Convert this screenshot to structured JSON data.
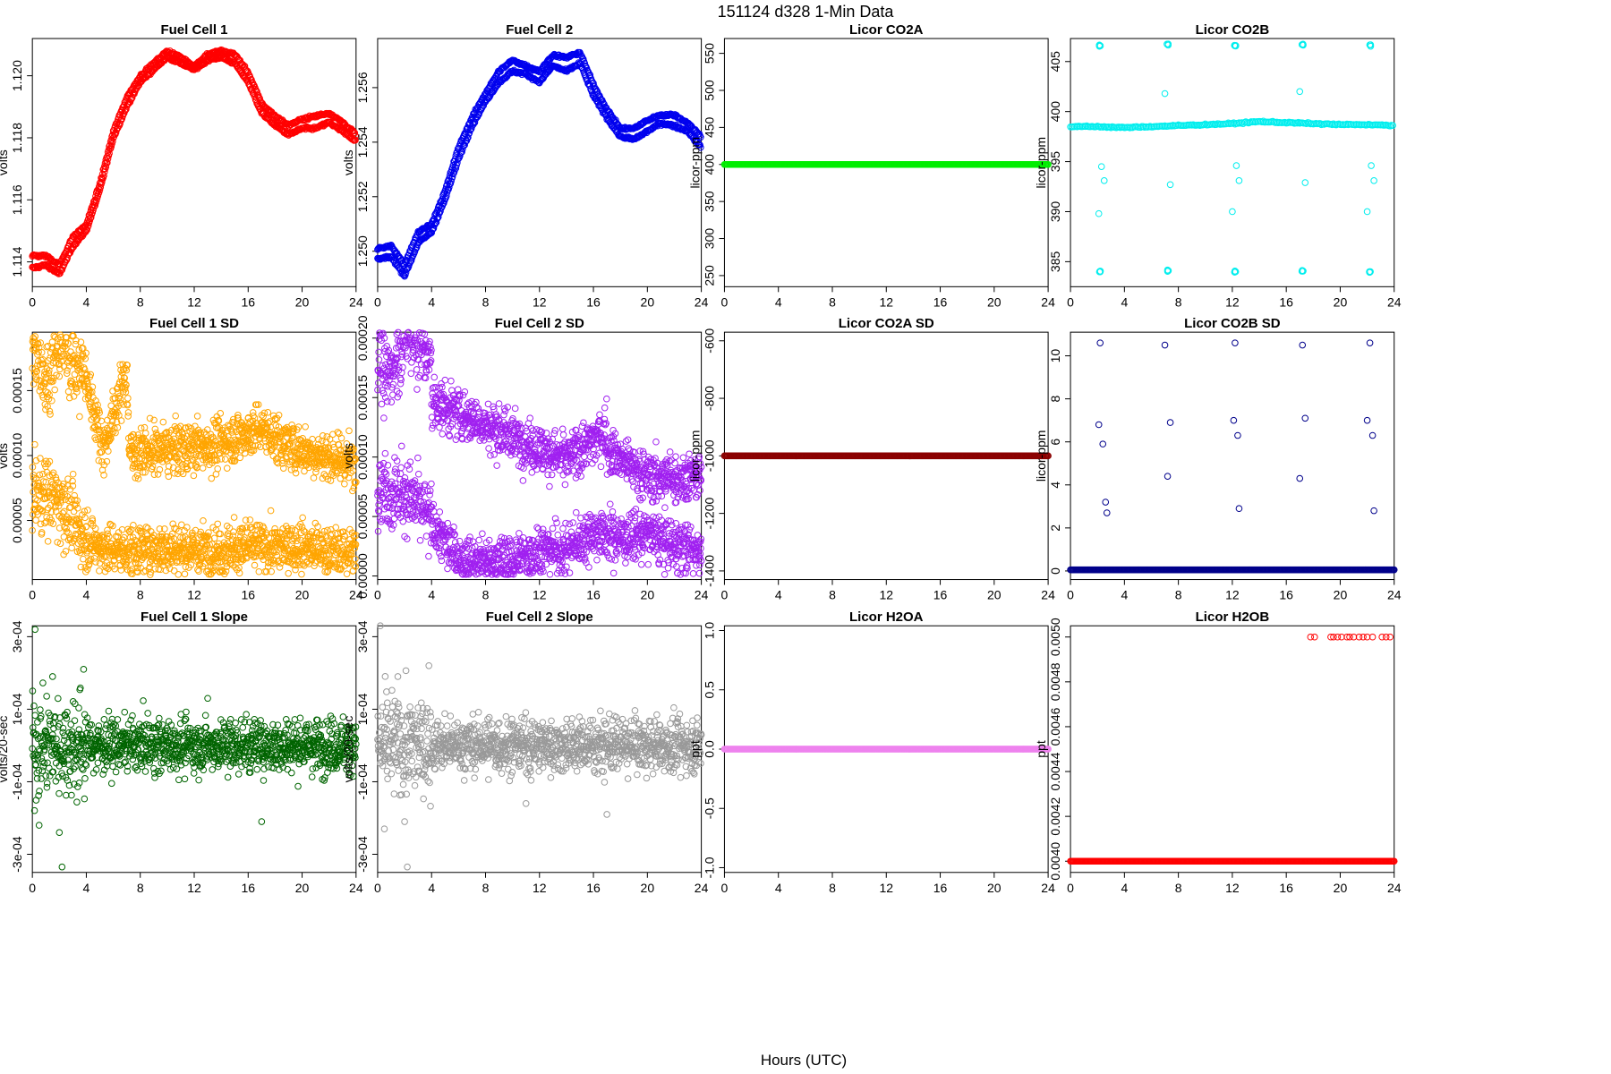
{
  "figure": {
    "title": "151124    d328    1-Min Data",
    "xlabel": "Hours (UTC)"
  },
  "chart_data": [
    {
      "type": "scatter",
      "title": "Fuel Cell 1",
      "ylabel": "volts",
      "color": "#ff0000",
      "xlim": [
        0,
        24
      ],
      "ylim": [
        1.1132,
        1.1212
      ],
      "xticks": [
        0,
        4,
        8,
        12,
        16,
        20,
        24
      ],
      "xtick_labels": [
        "0",
        "4",
        "8",
        "12",
        "16",
        "20",
        "24"
      ],
      "yticks": [
        1.114,
        1.116,
        1.118,
        1.12
      ],
      "ytick_labels": [
        "1.114",
        "1.116",
        "1.118",
        "1.120"
      ],
      "series": [
        {
          "x": [
            0,
            1,
            2,
            3,
            4,
            5,
            6,
            7,
            8,
            9,
            10,
            11,
            12,
            13,
            14,
            15,
            16,
            17,
            18,
            19,
            20,
            21,
            22,
            23,
            24
          ],
          "y": [
            1.1138,
            1.1139,
            1.1136,
            1.1145,
            1.115,
            1.1163,
            1.118,
            1.119,
            1.1198,
            1.1202,
            1.1206,
            1.1204,
            1.1202,
            1.1205,
            1.1206,
            1.1204,
            1.1198,
            1.1188,
            1.1184,
            1.1181,
            1.1183,
            1.1183,
            1.1185,
            1.1182,
            1.1179
          ]
        },
        {
          "x": [
            0,
            1,
            2,
            3,
            4,
            5,
            6,
            7,
            8,
            9,
            10,
            11,
            12,
            13,
            14,
            15,
            16,
            17,
            18,
            19,
            20,
            21,
            22,
            23,
            24
          ],
          "y": [
            1.1142,
            1.1142,
            1.1139,
            1.1148,
            1.1152,
            1.1165,
            1.1182,
            1.1193,
            1.12,
            1.1204,
            1.1208,
            1.1206,
            1.1203,
            1.1207,
            1.1208,
            1.1207,
            1.1201,
            1.1191,
            1.1187,
            1.1184,
            1.1186,
            1.1187,
            1.1188,
            1.1185,
            1.1181
          ]
        }
      ]
    },
    {
      "type": "scatter",
      "title": "Fuel Cell 2",
      "ylabel": "volts",
      "color": "#0000ee",
      "xlim": [
        0,
        24
      ],
      "ylim": [
        1.2487,
        1.2578
      ],
      "xticks": [
        0,
        4,
        8,
        12,
        16,
        20,
        24
      ],
      "xtick_labels": [
        "0",
        "4",
        "8",
        "12",
        "16",
        "20",
        "24"
      ],
      "yticks": [
        1.25,
        1.252,
        1.254,
        1.256
      ],
      "ytick_labels": [
        "1.250",
        "1.252",
        "1.254",
        "1.256"
      ],
      "series": [
        {
          "x": [
            0,
            1,
            2,
            3,
            4,
            5,
            6,
            7,
            8,
            9,
            10,
            11,
            12,
            13,
            14,
            15,
            16,
            17,
            18,
            19,
            20,
            21,
            22,
            23,
            24
          ],
          "y": [
            1.2497,
            1.2498,
            1.2491,
            1.2503,
            1.2507,
            1.2519,
            1.2534,
            1.2546,
            1.2555,
            1.2562,
            1.2566,
            1.2565,
            1.2562,
            1.2568,
            1.2566,
            1.2569,
            1.2557,
            1.2549,
            1.2542,
            1.2541,
            1.2544,
            1.2547,
            1.2546,
            1.2544,
            1.2538
          ]
        },
        {
          "x": [
            0,
            1,
            2,
            3,
            4,
            5,
            6,
            7,
            8,
            9,
            10,
            11,
            12,
            13,
            14,
            15,
            16,
            17,
            18,
            19,
            20,
            21,
            22,
            23,
            24
          ],
          "y": [
            1.2501,
            1.2502,
            1.2495,
            1.2507,
            1.251,
            1.2522,
            1.2538,
            1.2549,
            1.2558,
            1.2566,
            1.257,
            1.2568,
            1.2566,
            1.2572,
            1.2571,
            1.2573,
            1.2561,
            1.2552,
            1.2545,
            1.2545,
            1.2548,
            1.255,
            1.255,
            1.2547,
            1.2542
          ]
        }
      ]
    },
    {
      "type": "scatter",
      "title": "Licor CO2A",
      "ylabel": "licor-ppm",
      "color": "#00ee00",
      "xlim": [
        0,
        24
      ],
      "ylim": [
        235,
        570
      ],
      "xticks": [
        0,
        4,
        8,
        12,
        16,
        20,
        24
      ],
      "xtick_labels": [
        "0",
        "4",
        "8",
        "12",
        "16",
        "20",
        "24"
      ],
      "yticks": [
        250,
        300,
        350,
        400,
        450,
        500,
        550
      ],
      "ytick_labels": [
        "250",
        "300",
        "350",
        "400",
        "450",
        "500",
        "550"
      ],
      "series": [
        {
          "x": [
            0,
            24
          ],
          "y": [
            400,
            400
          ]
        }
      ]
    },
    {
      "type": "scatter",
      "title": "Licor CO2B",
      "ylabel": "licor-ppm",
      "color": "#00eeee",
      "xlim": [
        0,
        24
      ],
      "ylim": [
        382.5,
        407.3
      ],
      "xticks": [
        0,
        4,
        8,
        12,
        16,
        20,
        24
      ],
      "xtick_labels": [
        "0",
        "4",
        "8",
        "12",
        "16",
        "20",
        "24"
      ],
      "yticks": [
        385,
        390,
        395,
        400,
        405
      ],
      "ytick_labels": [
        "385",
        "390",
        "395",
        "400",
        "405"
      ],
      "series": [
        {
          "x": [
            0,
            2,
            4,
            6,
            8,
            10,
            12,
            14,
            16,
            18,
            20,
            22,
            24
          ],
          "y": [
            398.5,
            398.5,
            398.4,
            398.5,
            398.6,
            398.7,
            398.8,
            399.0,
            398.9,
            398.8,
            398.7,
            398.7,
            398.6
          ]
        },
        {
          "x": [
            2.2,
            7.2,
            12.2,
            17.2,
            22.2
          ],
          "y": [
            406.6,
            406.7,
            406.6,
            406.7,
            406.6
          ]
        },
        {
          "x": [
            2.2,
            7.2,
            12.2,
            17.2,
            22.2
          ],
          "y": [
            384.0,
            384.1,
            384.0,
            384.1,
            384.0
          ]
        },
        {
          "x": [
            2.1,
            2.3,
            2.5,
            7.0,
            7.4,
            12.0,
            12.3,
            12.5,
            17.0,
            17.4,
            22.0,
            22.3,
            22.5
          ],
          "y": [
            389.8,
            394.5,
            393.1,
            401.8,
            392.7,
            390.0,
            394.6,
            393.1,
            402.0,
            392.9,
            390.0,
            394.6,
            393.1
          ]
        }
      ]
    },
    {
      "type": "scatter",
      "title": "Fuel Cell 1 SD",
      "ylabel": "volts",
      "color": "#ffa500",
      "xlim": [
        0,
        24
      ],
      "ylim": [
        4.5e-06,
        0.000195
      ],
      "xticks": [
        0,
        4,
        8,
        12,
        16,
        20,
        24
      ],
      "xtick_labels": [
        "0",
        "4",
        "8",
        "12",
        "16",
        "20",
        "24"
      ],
      "yticks": [
        5e-05,
        0.0001,
        0.00015
      ],
      "ytick_labels": [
        "0.00005",
        "0.00010",
        "0.00015"
      ],
      "series": [
        {
          "x": [
            0,
            1,
            2,
            3,
            4,
            5,
            6,
            8,
            10,
            12,
            14,
            16,
            18,
            20,
            22,
            24
          ],
          "y": [
            7e-05,
            7e-05,
            6.5e-05,
            5e-05,
            3.5e-05,
            3e-05,
            2.7e-05,
            2.7e-05,
            2.9e-05,
            2.7e-05,
            2.7e-05,
            3e-05,
            2.9e-05,
            3e-05,
            2.6e-05,
            2.6e-05
          ]
        },
        {
          "x": [
            0.2,
            0.5,
            1.0,
            2.2,
            3.5,
            3.7,
            5.3,
            7.0,
            7.2,
            13.5,
            16.9,
            19.0,
            23.8
          ],
          "y": [
            0.000175,
            0.000183,
            0.000155,
            0.000189,
            0.000162,
            0.00017,
            0.000105,
            0.000165,
            0.000102,
            0.000108,
            0.000121,
            0.000107,
            9.4e-05
          ]
        }
      ]
    },
    {
      "type": "scatter",
      "title": "Fuel Cell 2 SD",
      "ylabel": "volts",
      "color": "#a020f0",
      "xlim": [
        0,
        24
      ],
      "ylim": [
        -3e-06,
        0.000205
      ],
      "xticks": [
        0,
        4,
        8,
        12,
        16,
        20,
        24
      ],
      "xtick_labels": [
        "0",
        "4",
        "8",
        "12",
        "16",
        "20",
        "24"
      ],
      "yticks": [
        0,
        5e-05,
        0.0001,
        0.00015,
        0.0002
      ],
      "ytick_labels": [
        "0.00000",
        "0.00005",
        "0.00010",
        "0.00015",
        "0.00020"
      ],
      "series": [
        {
          "x": [
            0,
            1,
            2,
            3,
            4,
            5,
            6,
            8,
            10,
            12,
            14,
            16,
            18,
            20,
            22,
            24
          ],
          "y": [
            8e-05,
            7e-05,
            7e-05,
            6e-05,
            4.5e-05,
            2.8e-05,
            1.5e-05,
            1.2e-05,
            1.3e-05,
            2.2e-05,
            2.2e-05,
            3.7e-05,
            3.2e-05,
            3.5e-05,
            2.5e-05,
            2.2e-05
          ]
        },
        {
          "x": [
            0.2,
            0.5,
            2.2,
            4.0,
            1.8,
            12.8,
            14.0,
            17.0,
            16.8,
            20.0
          ],
          "y": [
            0.000185,
            0.000162,
            0.000205,
            0.000182,
            0.000158,
            0.000103,
            9.8e-05,
            0.000122,
            0.000109,
            8.3e-05
          ]
        }
      ]
    },
    {
      "type": "scatter",
      "title": "Licor CO2A SD",
      "ylabel": "licor-ppm",
      "color": "#8b0000",
      "xlim": [
        0,
        24
      ],
      "ylim": [
        -1430,
        -570
      ],
      "xticks": [
        0,
        4,
        8,
        12,
        16,
        20,
        24
      ],
      "xtick_labels": [
        "0",
        "4",
        "8",
        "12",
        "16",
        "20",
        "24"
      ],
      "yticks": [
        -1400,
        -1200,
        -1000,
        -800,
        -600
      ],
      "ytick_labels": [
        "-1400",
        "-1200",
        "-1000",
        "-800",
        "-600"
      ],
      "series": [
        {
          "x": [
            0,
            24
          ],
          "y": [
            -1000,
            -1000
          ]
        }
      ]
    },
    {
      "type": "scatter",
      "title": "Licor CO2B SD",
      "ylabel": "licor-ppm",
      "color": "#00008b",
      "xlim": [
        0,
        24
      ],
      "ylim": [
        -0.4,
        11.1
      ],
      "xticks": [
        0,
        4,
        8,
        12,
        16,
        20,
        24
      ],
      "xtick_labels": [
        "0",
        "4",
        "8",
        "12",
        "16",
        "20",
        "24"
      ],
      "yticks": [
        0,
        2,
        4,
        6,
        8,
        10
      ],
      "ytick_labels": [
        "0",
        "2",
        "4",
        "6",
        "8",
        "10"
      ],
      "series": [
        {
          "x": [
            0,
            24
          ],
          "y": [
            0.05,
            0.05
          ]
        },
        {
          "x": [
            2.2,
            2.1,
            2.4,
            2.6,
            2.7,
            7.0,
            7.2,
            7.4,
            12.2,
            12.1,
            12.4,
            12.5,
            17.2,
            17.0,
            17.4,
            22.2,
            22.0,
            22.4,
            22.5
          ],
          "y": [
            10.6,
            6.8,
            5.9,
            3.2,
            2.7,
            10.5,
            4.4,
            6.9,
            10.6,
            7.0,
            6.3,
            2.9,
            10.5,
            4.3,
            7.1,
            10.6,
            7.0,
            6.3,
            2.8
          ]
        }
      ]
    },
    {
      "type": "scatter",
      "title": "Fuel Cell 1 Slope",
      "ylabel": "volts/20-sec",
      "color": "#006400",
      "xlim": [
        0,
        24
      ],
      "ylim": [
        -0.00035,
        0.00033
      ],
      "xticks": [
        0,
        4,
        8,
        12,
        16,
        20,
        24
      ],
      "xtick_labels": [
        "0",
        "4",
        "8",
        "12",
        "16",
        "20",
        "24"
      ],
      "yticks": [
        -0.0003,
        -0.0001,
        0.0001,
        0.0003
      ],
      "ytick_labels": [
        "-3e-04",
        "-1e-04",
        "1e-04",
        "3e-04"
      ],
      "series": [
        {
          "x": [
            0,
            2,
            4,
            6,
            8,
            12,
            16,
            20,
            24
          ],
          "y": [
            0,
            0,
            0,
            0,
            0,
            0,
            0,
            0,
            0
          ]
        },
        {
          "x": [
            0.2,
            2.2,
            3.8,
            0.5,
            1.5,
            2.0,
            13.0,
            17.0
          ],
          "y": [
            0.00032,
            -0.000335,
            0.00021,
            -0.00022,
            0.00019,
            -0.00024,
            0.00013,
            -0.00021
          ]
        }
      ]
    },
    {
      "type": "scatter",
      "title": "Fuel Cell 2 Slope",
      "ylabel": "volts/20-sec",
      "color": "#999999",
      "xlim": [
        0,
        24
      ],
      "ylim": [
        -0.00035,
        0.00033
      ],
      "xticks": [
        0,
        4,
        8,
        12,
        16,
        20,
        24
      ],
      "xtick_labels": [
        "0",
        "4",
        "8",
        "12",
        "16",
        "20",
        "24"
      ],
      "yticks": [
        -0.0003,
        -0.0001,
        0.0001,
        0.0003
      ],
      "ytick_labels": [
        "-3e-04",
        "-1e-04",
        "1e-04",
        "3e-04"
      ],
      "series": [
        {
          "x": [
            0,
            2,
            4,
            6,
            8,
            12,
            16,
            20,
            24
          ],
          "y": [
            0,
            0,
            0,
            0,
            0,
            0,
            0,
            0,
            0
          ]
        },
        {
          "x": [
            0.2,
            2.2,
            3.8,
            0.5,
            1.5,
            2.0,
            11.0,
            17.0
          ],
          "y": [
            0.00033,
            -0.000335,
            0.00022,
            -0.00023,
            0.00019,
            -0.00021,
            -0.00016,
            -0.00019
          ]
        }
      ]
    },
    {
      "type": "scatter",
      "title": "Licor H2OA",
      "ylabel": "ppt",
      "color": "#ee82ee",
      "xlim": [
        0,
        24
      ],
      "ylim": [
        -1.04,
        1.04
      ],
      "xticks": [
        0,
        4,
        8,
        12,
        16,
        20,
        24
      ],
      "xtick_labels": [
        "0",
        "4",
        "8",
        "12",
        "16",
        "20",
        "24"
      ],
      "yticks": [
        -1,
        -0.5,
        0,
        0.5,
        1
      ],
      "ytick_labels": [
        "-1.0",
        "-0.5",
        "0.0",
        "0.5",
        "1.0"
      ],
      "series": [
        {
          "x": [
            0,
            24
          ],
          "y": [
            0,
            0
          ]
        }
      ]
    },
    {
      "type": "scatter",
      "title": "Licor H2OB",
      "ylabel": "ppt",
      "color": "#ff0000",
      "xlim": [
        0,
        24
      ],
      "ylim": [
        0.00395,
        0.00505
      ],
      "xticks": [
        0,
        4,
        8,
        12,
        16,
        20,
        24
      ],
      "xtick_labels": [
        "0",
        "4",
        "8",
        "12",
        "16",
        "20",
        "24"
      ],
      "yticks": [
        0.004,
        0.0042,
        0.0044,
        0.0046,
        0.0048,
        0.005
      ],
      "ytick_labels": [
        "0.0040",
        "0.0042",
        "0.0044",
        "0.0046",
        "0.0048",
        "0.0050"
      ],
      "series": [
        {
          "x": [
            0,
            24
          ],
          "y": [
            0.004,
            0.004
          ]
        },
        {
          "x": [
            17.8,
            18.1,
            19.3,
            19.5,
            19.8,
            20.1,
            20.5,
            20.7,
            21.0,
            21.4,
            21.7,
            22.0,
            22.4,
            23.1,
            23.4,
            23.7
          ],
          "y": [
            0.005,
            0.005,
            0.005,
            0.005,
            0.005,
            0.005,
            0.005,
            0.005,
            0.005,
            0.005,
            0.005,
            0.005,
            0.005,
            0.005,
            0.005,
            0.005
          ]
        }
      ]
    }
  ]
}
